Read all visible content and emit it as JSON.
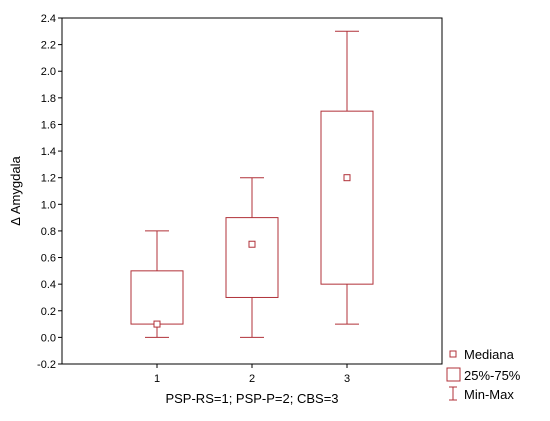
{
  "chart_data": {
    "type": "boxplot",
    "title": "",
    "xlabel": "PSP-RS=1; PSP-P=2; CBS=3",
    "ylabel": "Δ Amygdala",
    "categories": [
      "1",
      "2",
      "3"
    ],
    "ylim": [
      -0.2,
      2.4
    ],
    "yticks": [
      "-0.2",
      "0.0",
      "0.2",
      "0.4",
      "0.6",
      "0.8",
      "1.0",
      "1.2",
      "1.4",
      "1.6",
      "1.8",
      "2.0",
      "2.2",
      "2.4"
    ],
    "grid": false,
    "legend_position": "bottom-right",
    "color": "#b03038",
    "boxes": [
      {
        "category": "1",
        "min": 0.0,
        "q1": 0.1,
        "median": 0.1,
        "q3": 0.5,
        "max": 0.8
      },
      {
        "category": "2",
        "min": 0.0,
        "q1": 0.3,
        "median": 0.7,
        "q3": 0.9,
        "max": 1.2
      },
      {
        "category": "3",
        "min": 0.1,
        "q1": 0.4,
        "median": 1.2,
        "q3": 1.7,
        "max": 2.3
      }
    ],
    "legend": {
      "median": "Mediana",
      "box": "25%-75%",
      "whisker": "Min-Max"
    }
  }
}
